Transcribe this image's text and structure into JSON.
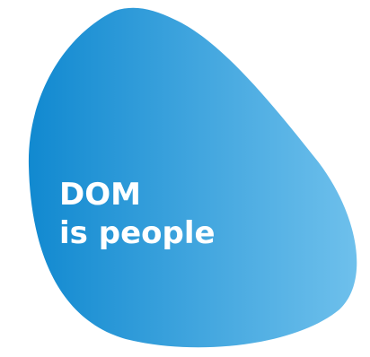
{
  "headline": {
    "line1": "DOM",
    "line2": "is people"
  },
  "colors": {
    "blob_gradient_start": "#1189d0",
    "blob_gradient_end": "#6ec0ec",
    "text": "#ffffff",
    "background": "#ffffff"
  }
}
